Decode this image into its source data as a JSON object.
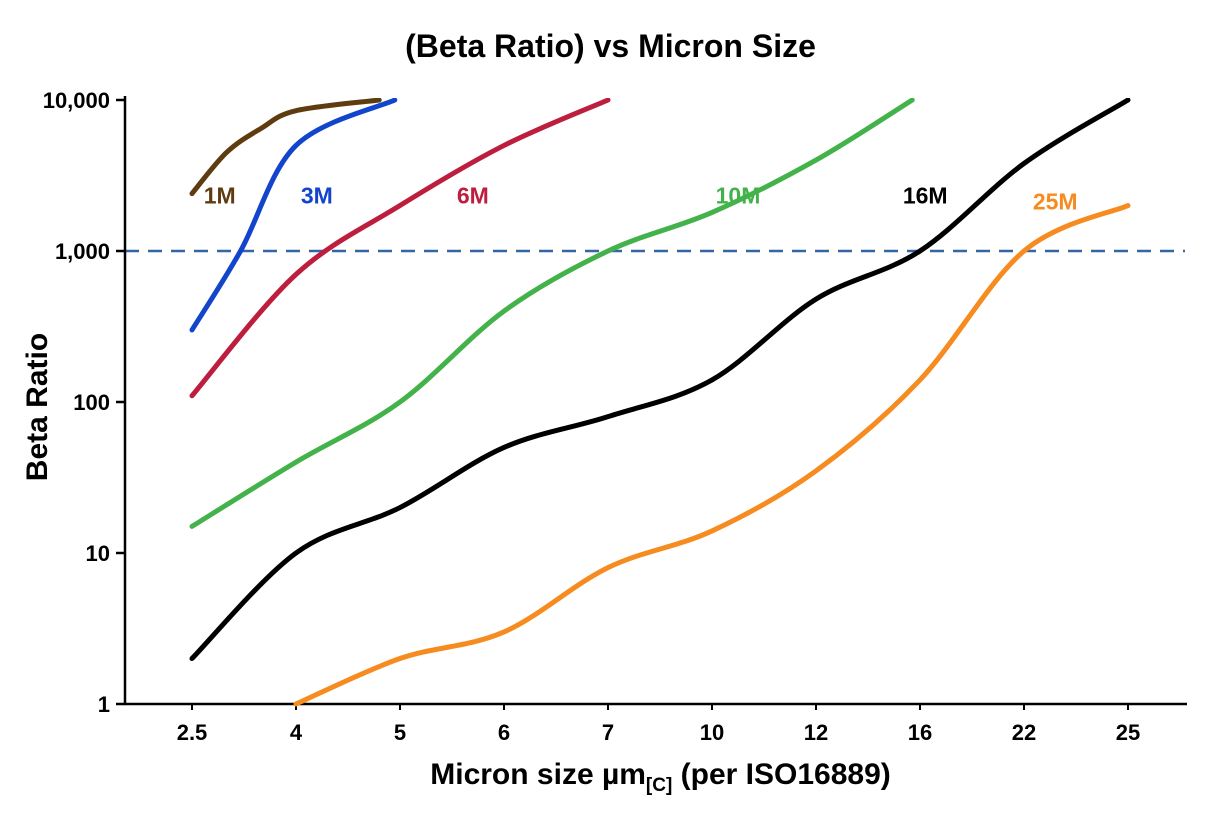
{
  "title": "(Beta Ratio) vs Micron Size",
  "ylabel": "Beta Ratio",
  "xlabel": {
    "main": "Micron size µm",
    "sub": "[C]",
    "rest": " (per ISO16889)"
  },
  "chart_data": {
    "type": "line",
    "x_categories": [
      2.5,
      4,
      5,
      6,
      7,
      10,
      12,
      16,
      22,
      25
    ],
    "x_tick_labels": [
      "2.5",
      "4",
      "5",
      "6",
      "7",
      "10",
      "12",
      "16",
      "22",
      "25"
    ],
    "y_scale": "log",
    "y_ticks": [
      1,
      10,
      100,
      1000,
      10000
    ],
    "y_tick_labels": [
      "1",
      "10",
      "100",
      "1,000",
      "10,000"
    ],
    "ylim": [
      1,
      10000
    ],
    "grid": "off",
    "legend_position": "inline-labels",
    "reference_line": {
      "y": 1000,
      "style": "dashed",
      "color": "#3465a4"
    },
    "axis_color": "#000000",
    "series": [
      {
        "name": "1M",
        "color": "#5e3c10",
        "label_at": [
          2.9,
          2300
        ],
        "points": [
          [
            2.5,
            2400
          ],
          [
            3.0,
            4500
          ],
          [
            3.5,
            6500
          ],
          [
            4.0,
            8500
          ],
          [
            4.8,
            10000
          ]
        ]
      },
      {
        "name": "3M",
        "color": "#1245cc",
        "label_at": [
          4.2,
          2300
        ],
        "points": [
          [
            2.5,
            300
          ],
          [
            3.2,
            1000
          ],
          [
            4.0,
            5000
          ],
          [
            4.95,
            10000
          ]
        ]
      },
      {
        "name": "6M",
        "color": "#bd1e3e",
        "label_at": [
          5.7,
          2300
        ],
        "points": [
          [
            2.5,
            110
          ],
          [
            4.0,
            700
          ],
          [
            5.0,
            2000
          ],
          [
            6.0,
            5000
          ],
          [
            7.0,
            10000
          ]
        ]
      },
      {
        "name": "10M",
        "color": "#44b24a",
        "label_at": [
          10.5,
          2300
        ],
        "points": [
          [
            2.5,
            15
          ],
          [
            4.0,
            40
          ],
          [
            5.0,
            100
          ],
          [
            6.0,
            400
          ],
          [
            7.0,
            1000
          ],
          [
            10.0,
            1800
          ],
          [
            12.0,
            4000
          ],
          [
            15.7,
            10000
          ]
        ]
      },
      {
        "name": "16M",
        "color": "#000000",
        "label_at": [
          16.3,
          2300
        ],
        "points": [
          [
            2.5,
            2
          ],
          [
            4.0,
            10
          ],
          [
            5.0,
            20
          ],
          [
            6.0,
            50
          ],
          [
            7.0,
            80
          ],
          [
            10.0,
            140
          ],
          [
            12.0,
            480
          ],
          [
            16.0,
            1000
          ],
          [
            22.0,
            3800
          ],
          [
            25.0,
            10000
          ]
        ]
      },
      {
        "name": "25M",
        "color": "#f68b1f",
        "label_at": [
          22.9,
          2100
        ],
        "points": [
          [
            4.0,
            1
          ],
          [
            5.0,
            2
          ],
          [
            6.0,
            3
          ],
          [
            7.0,
            8
          ],
          [
            10.0,
            14
          ],
          [
            12.0,
            35
          ],
          [
            16.0,
            140
          ],
          [
            22.0,
            1000
          ],
          [
            25.0,
            2000
          ]
        ]
      }
    ]
  }
}
